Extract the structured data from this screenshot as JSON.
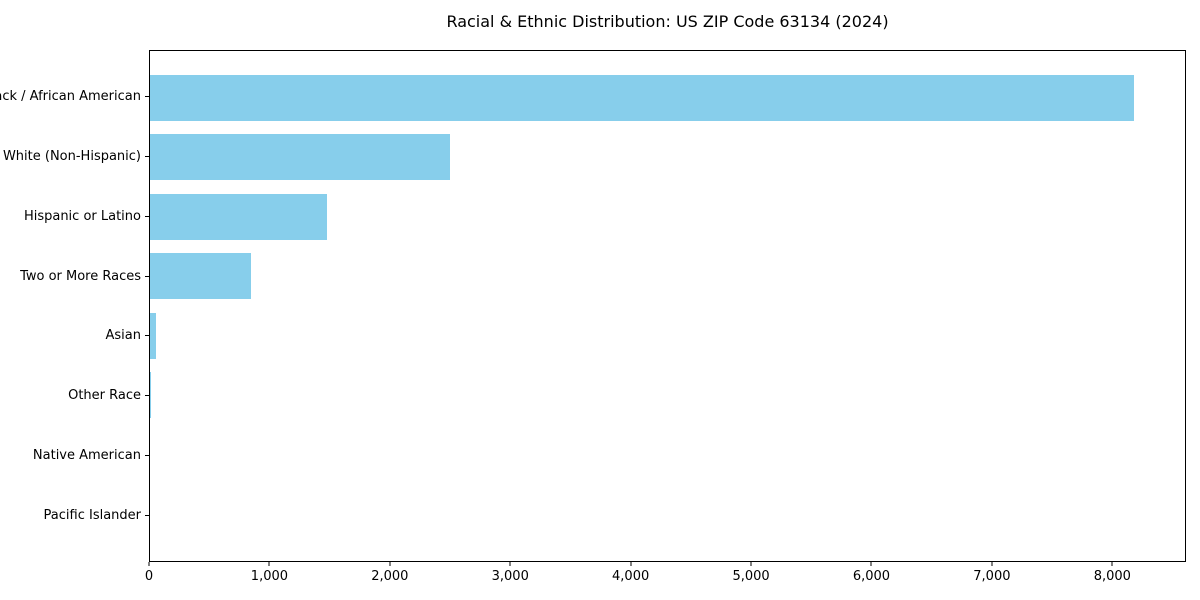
{
  "chart_data": {
    "type": "bar",
    "orientation": "horizontal",
    "title": "Racial & Ethnic Distribution: US ZIP Code 63134 (2024)",
    "categories": [
      "Black / African American",
      "White (Non-Hispanic)",
      "Hispanic or Latino",
      "Two or More Races",
      "Asian",
      "Other Race",
      "Native American",
      "Pacific Islander"
    ],
    "values": [
      8190,
      2500,
      1475,
      840,
      50,
      10,
      0,
      0
    ],
    "xlabel": "",
    "ylabel": "",
    "xlim": [
      0,
      8612
    ],
    "x_ticks": [
      0,
      1000,
      2000,
      3000,
      4000,
      5000,
      6000,
      7000,
      8000
    ],
    "x_tick_labels": [
      "0",
      "1,000",
      "2,000",
      "3,000",
      "4,000",
      "5,000",
      "6,000",
      "7,000",
      "8,000"
    ],
    "bar_color": "#87ceeb",
    "axis_color": "#000000",
    "grid": false,
    "legend": "none"
  }
}
